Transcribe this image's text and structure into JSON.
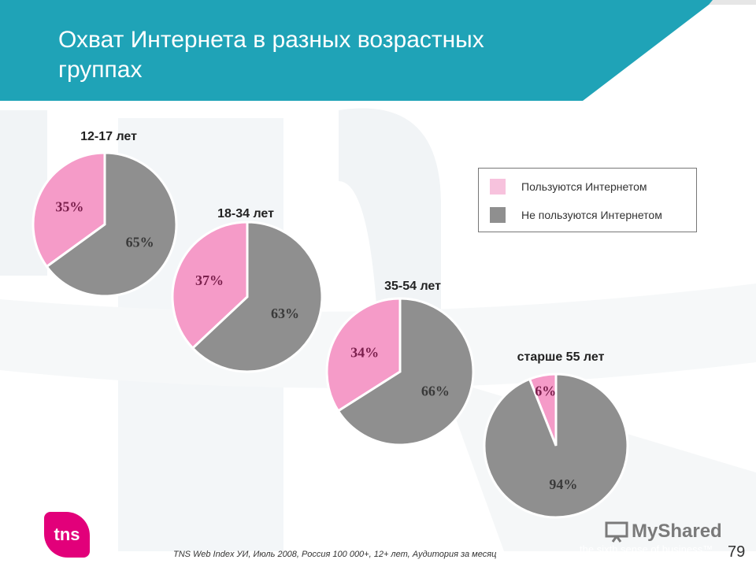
{
  "title": "Охват Интернета в разных возрастных группах",
  "legend": {
    "items": [
      {
        "label": "Пользуются Интернетом",
        "color": "#f59bc8"
      },
      {
        "label": "Не пользуются Интернетом",
        "color": "#8f8f8f"
      }
    ]
  },
  "chart_data": [
    {
      "type": "pie",
      "title": "12-17 лет",
      "categories": [
        "Пользуются Интернетом",
        "Не пользуются Интернетом"
      ],
      "values": [
        35,
        65
      ],
      "data_labels": [
        "35%",
        "65%"
      ]
    },
    {
      "type": "pie",
      "title": "18-34 лет",
      "categories": [
        "Пользуются Интернетом",
        "Не пользуются Интернетом"
      ],
      "values": [
        37,
        63
      ],
      "data_labels": [
        "37%",
        "63%"
      ]
    },
    {
      "type": "pie",
      "title": "35-54 лет",
      "categories": [
        "Пользуются Интернетом",
        "Не пользуются Интернетом"
      ],
      "values": [
        34,
        66
      ],
      "data_labels": [
        "34%",
        "66%"
      ]
    },
    {
      "type": "pie",
      "title": "старше 55 лет",
      "categories": [
        "Пользуются Интернетом",
        "Не пользуются Интернетом"
      ],
      "values": [
        6,
        94
      ],
      "data_labels": [
        "6%",
        "94%"
      ]
    }
  ],
  "footer": {
    "source": "TNS Web Index УИ,  Июль 2008,  Россия 100 000+, 12+  лет, Аудитория за месяц",
    "tagline": "the sixth sense of business™",
    "page_number": "79",
    "logo_text": "tns",
    "watermark_text": "MyShared"
  },
  "colors": {
    "header": "#1fa3b7",
    "pink": "#f59bc8",
    "gray": "#8f8f8f"
  }
}
